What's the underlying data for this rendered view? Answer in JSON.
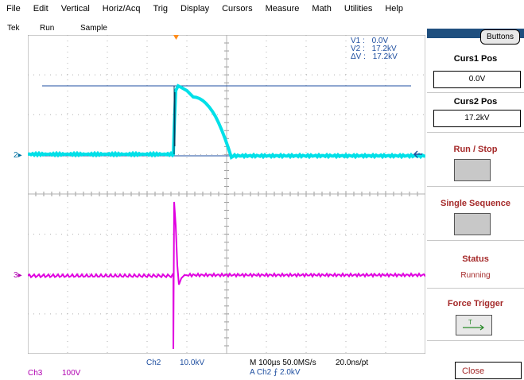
{
  "menu": [
    "File",
    "Edit",
    "Vertical",
    "Horiz/Acq",
    "Trig",
    "Display",
    "Cursors",
    "Measure",
    "Math",
    "Utilities",
    "Help"
  ],
  "status": {
    "brand": "Tek",
    "run": "Run",
    "mode": "Sample"
  },
  "cursor_readout": {
    "v1_label": "V1 :",
    "v1_value": "0.0V",
    "v2_label": "V2 :",
    "v2_value": "17.2kV",
    "dv_label": "ΔV :",
    "dv_value": "17.2kV"
  },
  "channel_markers": {
    "ch2": "2",
    "ch3": "3"
  },
  "bottom": {
    "ch2_label": "Ch2",
    "ch2_scale": "10.0kV",
    "ch3_label": "Ch3",
    "ch3_scale": "100V",
    "timebase": "M 100µs 50.0MS/s",
    "sample_interval": "20.0ns/pt",
    "trigger": "A  Ch2  ⨍  2.0kV"
  },
  "panel": {
    "buttons_tab": "Buttons",
    "curs1_label": "Curs1 Pos",
    "curs1_value": "0.0V",
    "curs2_label": "Curs2 Pos",
    "curs2_value": "17.2kV",
    "run_stop": "Run / Stop",
    "single_seq": "Single Sequence",
    "status_label": "Status",
    "status_value": "Running",
    "force_trigger": "Force Trigger",
    "close": "Close"
  },
  "colors": {
    "ch2": "#00e0e8",
    "ch3": "#e000e0",
    "cursor": "#1f4fa0",
    "grid": "#9a9a9a",
    "accent": "#a52a2a"
  }
}
